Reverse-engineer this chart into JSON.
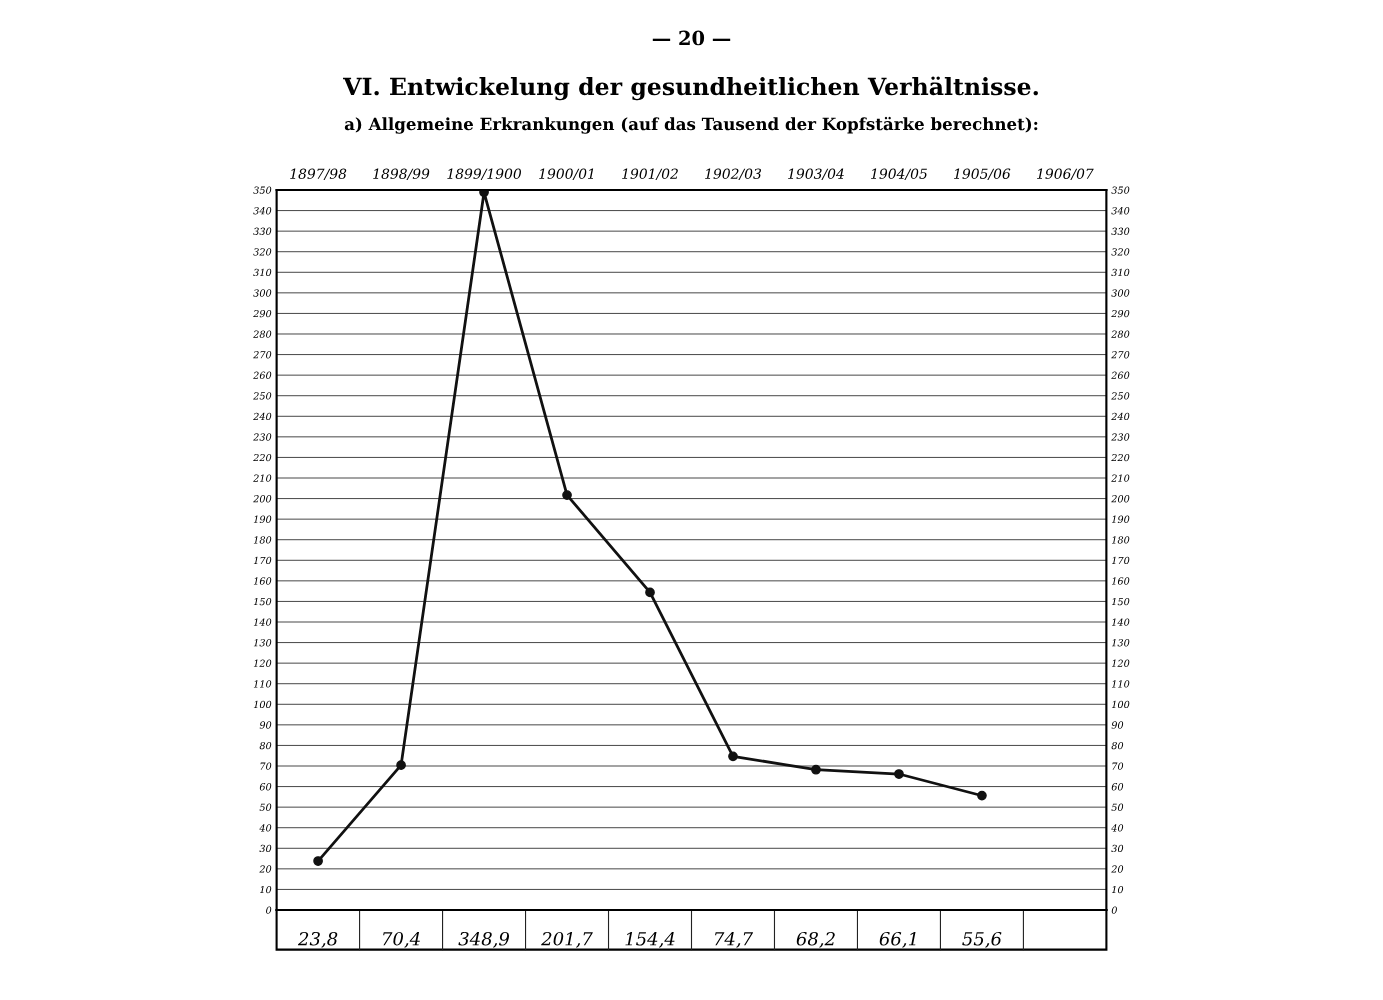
{
  "chart_data": {
    "type": "line",
    "title": "VI. Entwickelung der gesundheitlichen Verhältnisse.",
    "subtitle": "a) Allgemeine Erkrankungen (auf das Tausend der Kopfstärke berechnet):",
    "annotations": [
      "— 20 —"
    ],
    "categories": [
      "1897/98",
      "1898/99",
      "1899/1900",
      "1900/01",
      "1901/02",
      "1902/03",
      "1903/04",
      "1904/05",
      "1905/06",
      "1906/07"
    ],
    "values": [
      23.8,
      70.4,
      348.9,
      201.7,
      154.4,
      74.7,
      68.2,
      66.1,
      55.6,
      null
    ],
    "value_labels": [
      "23,8",
      "70,4",
      "348,9",
      "201,7",
      "154,4",
      "74,7",
      "68,2",
      "66,1",
      "55,6",
      null
    ],
    "color": "#111111",
    "marker": "circle",
    "line_style": "solid",
    "grid": true,
    "legend": false,
    "ylim": [
      0,
      350
    ],
    "yticks": [
      0,
      10,
      20,
      30,
      40,
      50,
      60,
      70,
      80,
      90,
      100,
      110,
      120,
      130,
      140,
      150,
      160,
      170,
      180,
      190,
      200,
      210,
      220,
      230,
      240,
      250,
      260,
      270,
      280,
      290,
      300,
      310,
      320,
      330,
      340,
      350
    ],
    "y2lim": [
      0,
      350
    ],
    "y2ticks": [
      0,
      10,
      20,
      30,
      40,
      50,
      60,
      70,
      80,
      90,
      100,
      110,
      120,
      130,
      140,
      150,
      160,
      170,
      180,
      190,
      200,
      210,
      220,
      230,
      240,
      250,
      260,
      270,
      280,
      290,
      300,
      310,
      320,
      330,
      340,
      350
    ]
  }
}
